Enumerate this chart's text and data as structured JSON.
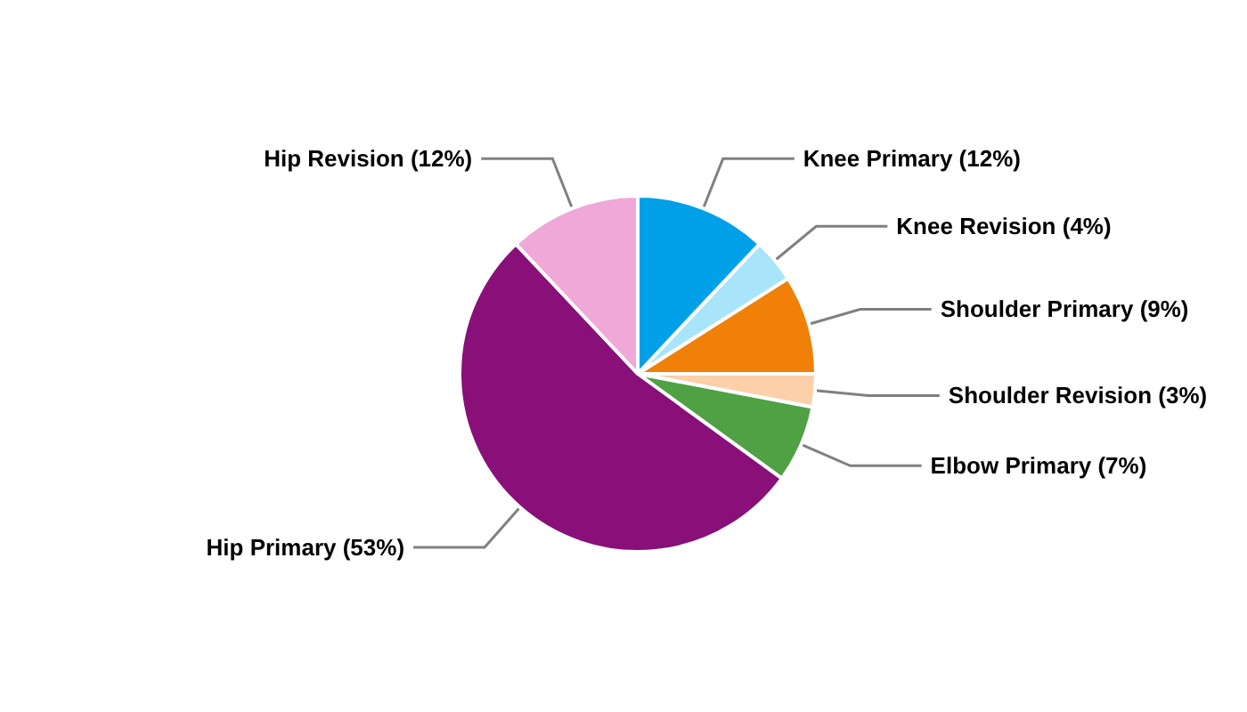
{
  "chart_data": {
    "type": "pie",
    "categories": [
      "Knee Primary",
      "Knee Revision",
      "Shoulder Primary",
      "Shoulder Revision",
      "Elbow Primary",
      "Hip Primary",
      "Hip Revision"
    ],
    "values": [
      12,
      4,
      9,
      3,
      7,
      53,
      12
    ],
    "value_labels": [
      "(12%)",
      "(4%)",
      "(9%)",
      "(3%)",
      "(7%)",
      "(53%)",
      "(12%)"
    ],
    "colors": [
      "#00a0e9",
      "#a8e4fa",
      "#f08008",
      "#fcd0a8",
      "#50a044",
      "#881078",
      "#f0a8d8"
    ],
    "legend": false
  }
}
